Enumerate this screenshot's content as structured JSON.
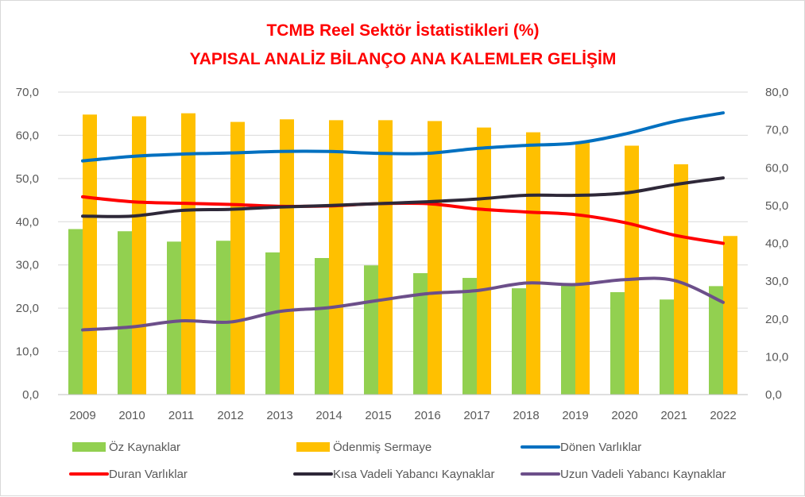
{
  "chart_data": {
    "type": "bar",
    "title": "TCMB  Reel Sektör İstatistikleri (%)",
    "subtitle": "YAPISAL ANALİZ BİLANÇO ANA KALEMLER GELİŞİM",
    "categories": [
      "2009",
      "2010",
      "2011",
      "2012",
      "2013",
      "2014",
      "2015",
      "2016",
      "2017",
      "2018",
      "2019",
      "2020",
      "2021",
      "2022"
    ],
    "y_left": {
      "min": 0,
      "max": 70,
      "ticks": [
        "0,0",
        "10,0",
        "20,0",
        "30,0",
        "40,0",
        "50,0",
        "60,0",
        "70,0"
      ]
    },
    "y_right": {
      "min": 0,
      "max": 80,
      "ticks": [
        "0,0",
        "10,0",
        "20,0",
        "30,0",
        "40,0",
        "50,0",
        "60,0",
        "70,0",
        "80,0"
      ]
    },
    "grid": true,
    "legend_position": "bottom",
    "series": [
      {
        "name": "Öz Kaynaklar",
        "kind": "bar",
        "axis": "left",
        "color": "#92d050",
        "values": [
          38.3,
          37.8,
          35.4,
          35.6,
          32.9,
          31.6,
          29.9,
          28.1,
          27.0,
          24.6,
          25.3,
          23.7,
          22.0,
          25.1
        ]
      },
      {
        "name": "Ödenmiş Sermaye",
        "kind": "bar",
        "axis": "left",
        "color": "#ffc000",
        "values": [
          64.8,
          64.4,
          65.1,
          63.1,
          63.7,
          63.5,
          63.5,
          63.3,
          61.8,
          60.7,
          58.4,
          57.6,
          53.3,
          36.7
        ]
      },
      {
        "name": "Dönen Varlıklar",
        "kind": "line",
        "axis": "right",
        "color": "#0070c0",
        "values": [
          61.8,
          63.0,
          63.6,
          63.9,
          64.3,
          64.3,
          63.8,
          63.8,
          65.1,
          65.9,
          66.5,
          68.9,
          72.2,
          74.5
        ]
      },
      {
        "name": "Duran Varlıklar",
        "kind": "line",
        "axis": "right",
        "color": "#ff0000",
        "values": [
          52.3,
          51.0,
          50.6,
          50.3,
          49.8,
          49.9,
          50.5,
          50.5,
          49.1,
          48.3,
          47.6,
          45.5,
          42.2,
          40.0
        ]
      },
      {
        "name": "Kısa Vadeli Yabancı Kaynaklar",
        "kind": "line",
        "axis": "right",
        "color": "#2e2838",
        "values": [
          47.2,
          47.2,
          48.7,
          49.0,
          49.6,
          50.0,
          50.5,
          51.0,
          51.7,
          52.7,
          52.7,
          53.3,
          55.5,
          57.3
        ]
      },
      {
        "name": "Uzun Vadeli Yabancı Kaynaklar",
        "kind": "line",
        "axis": "right",
        "color": "#6c4f8a",
        "values": [
          17.1,
          17.9,
          19.5,
          19.2,
          22.0,
          23.0,
          24.9,
          26.7,
          27.5,
          29.5,
          29.1,
          30.4,
          30.2,
          24.4
        ]
      }
    ]
  }
}
